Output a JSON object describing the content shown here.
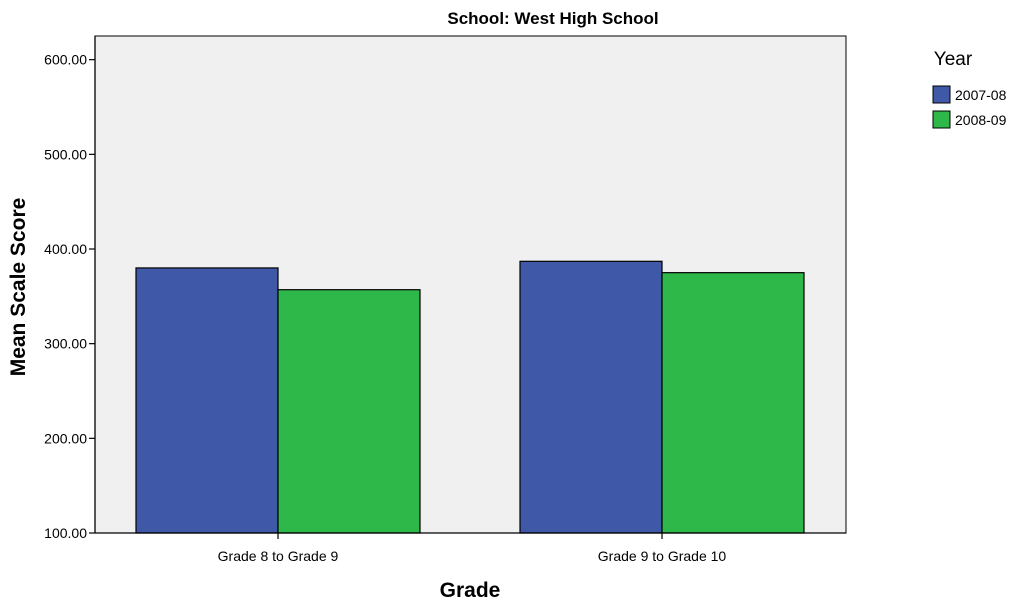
{
  "chart_data": {
    "type": "bar",
    "title": "School: West High School",
    "xlabel": "Grade",
    "ylabel": "Mean Scale Score",
    "categories": [
      "Grade 8 to Grade 9",
      "Grade 9 to Grade 10"
    ],
    "series": [
      {
        "name": "2007-08",
        "values": [
          380,
          387
        ],
        "color": "#3f58a8"
      },
      {
        "name": "2008-09",
        "values": [
          357,
          375
        ],
        "color": "#2fb84a"
      }
    ],
    "ylim": [
      100,
      625
    ],
    "yticks": [
      "100.00",
      "200.00",
      "300.00",
      "400.00",
      "500.00",
      "600.00"
    ],
    "ytick_values": [
      100,
      200,
      300,
      400,
      500,
      600
    ],
    "grid": false,
    "plot_background": "#f0f0f0",
    "legend": {
      "title": "Year",
      "placement": "top-right"
    }
  }
}
